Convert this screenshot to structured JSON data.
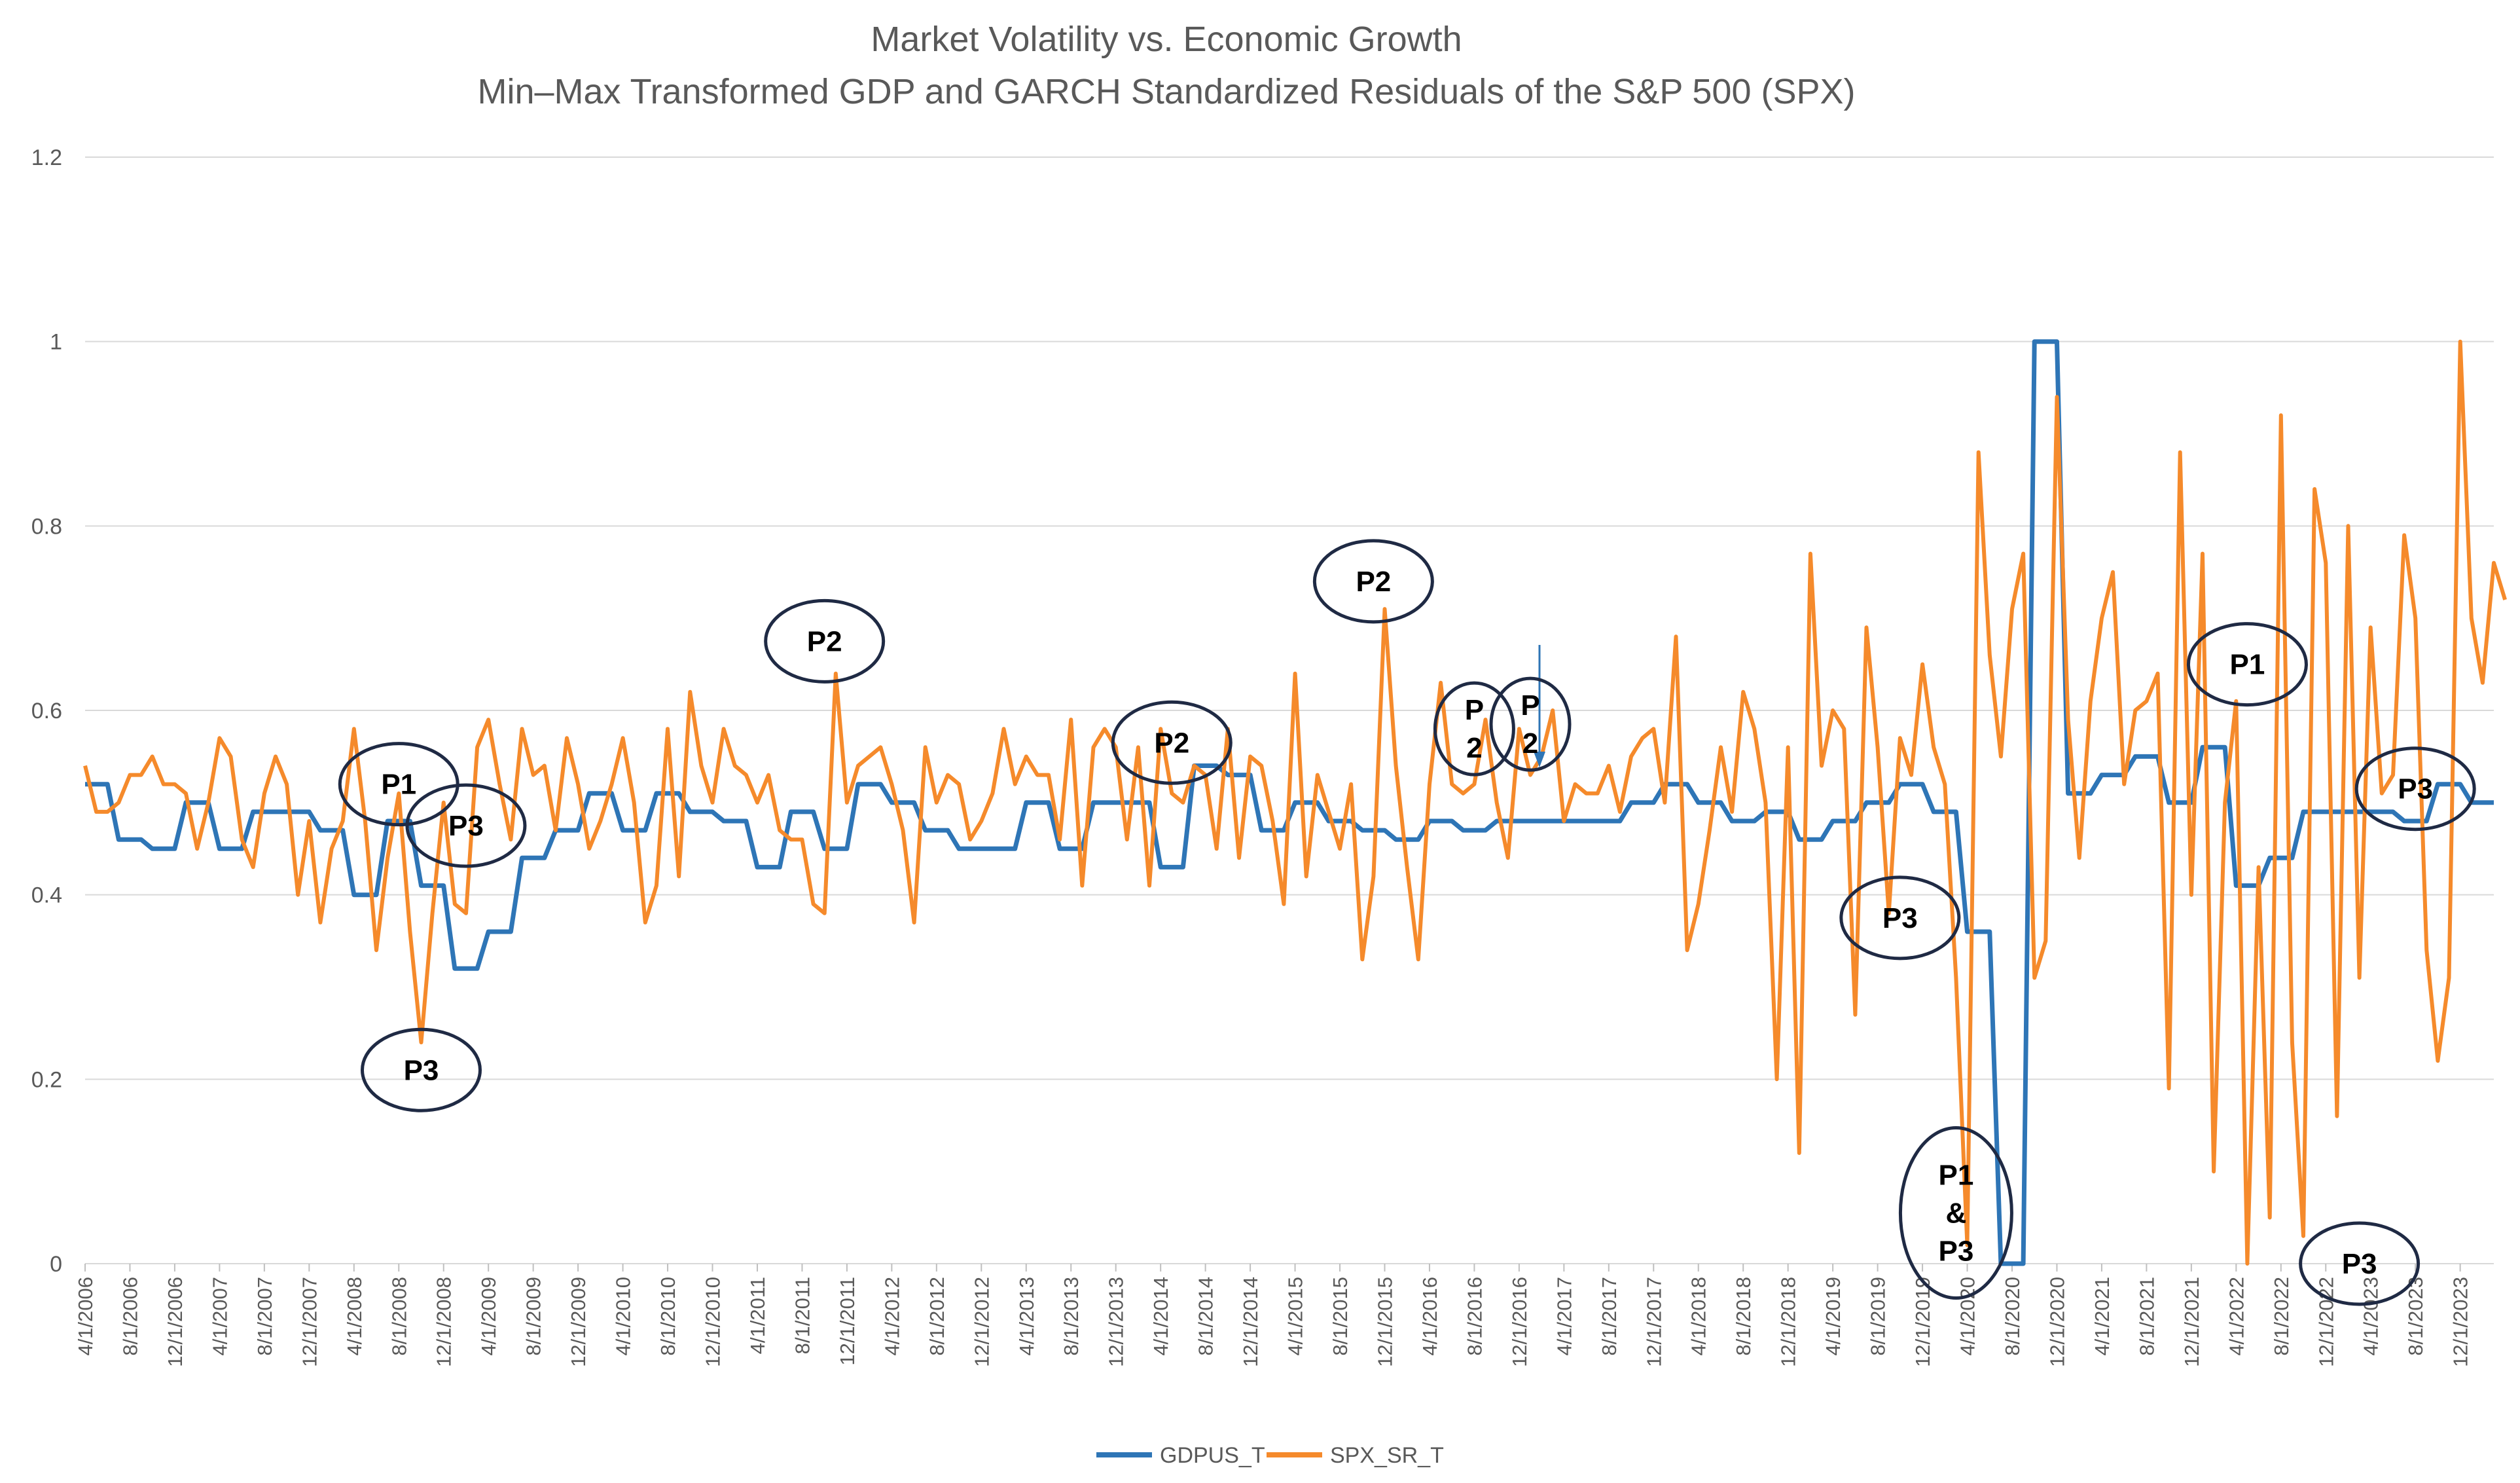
{
  "colors": {
    "gdp": "#2e75b6",
    "spx": "#f58a2b",
    "text": "#595959",
    "grid": "#d9d9d9",
    "annotation": "#1f2a44"
  },
  "chart_data": {
    "type": "line",
    "title": "Market Volatility vs. Economic Growth",
    "subtitle": "Min–Max Transformed GDP and GARCH Standardized Residuals of the S&P 500 (SPX)",
    "xlabel": "",
    "ylabel": "",
    "ylim": [
      0,
      1.2
    ],
    "yticks": [
      "0",
      "0.2",
      "0.4",
      "0.6",
      "0.8",
      "1",
      "1.2"
    ],
    "x_start": "4/1/2006",
    "n_months": 216,
    "x_tick_step_months": 4,
    "x_tick_labels": [
      "4/1/2006",
      "8/1/2006",
      "12/1/2006",
      "4/1/2007",
      "8/1/2007",
      "12/1/2007",
      "4/1/2008",
      "8/1/2008",
      "12/1/2008",
      "4/1/2009",
      "8/1/2009",
      "12/1/2009",
      "4/1/2010",
      "8/1/2010",
      "12/1/2010",
      "4/1/2011",
      "8/1/2011",
      "12/1/2011",
      "4/1/2012",
      "8/1/2012",
      "12/1/2012",
      "4/1/2013",
      "8/1/2013",
      "12/1/2013",
      "4/1/2014",
      "8/1/2014",
      "12/1/2014",
      "4/1/2015",
      "8/1/2015",
      "12/1/2015",
      "4/1/2016",
      "8/1/2016",
      "12/1/2016",
      "4/1/2017",
      "8/1/2017",
      "12/1/2017",
      "4/1/2018",
      "8/1/2018",
      "12/1/2018",
      "4/1/2019",
      "8/1/2019",
      "12/1/2019",
      "4/1/2020",
      "8/1/2020",
      "12/1/2020",
      "4/1/2021",
      "8/1/2021",
      "12/1/2021",
      "4/1/2022",
      "8/1/2022",
      "12/1/2022",
      "4/1/2023",
      "8/1/2023",
      "12/1/2023"
    ],
    "legend": [
      "GDPUS_T",
      "SPX_SR_T"
    ],
    "legend_position": "bottom",
    "series": [
      {
        "name": "GDPUS_T",
        "step": "quarterly",
        "quarterly_values": [
          0.52,
          0.46,
          0.45,
          0.5,
          0.45,
          0.49,
          0.49,
          0.47,
          0.4,
          0.48,
          0.41,
          0.32,
          0.36,
          0.44,
          0.47,
          0.51,
          0.47,
          0.51,
          0.49,
          0.48,
          0.43,
          0.49,
          0.45,
          0.52,
          0.5,
          0.47,
          0.45,
          0.45,
          0.5,
          0.45,
          0.5,
          0.5,
          0.43,
          0.54,
          0.53,
          0.47,
          0.5,
          0.48,
          0.47,
          0.46,
          0.48,
          0.47,
          0.48,
          0.48,
          0.48,
          0.48,
          0.5,
          0.52,
          0.5,
          0.48,
          0.49,
          0.46,
          0.48,
          0.5,
          0.52,
          0.49,
          0.36,
          0.0,
          1.0,
          0.51,
          0.53,
          0.55,
          0.5,
          0.56,
          0.41,
          0.44,
          0.49,
          0.49,
          0.49,
          0.48,
          0.52,
          0.5
        ]
      },
      {
        "name": "SPX_SR_T",
        "step": "monthly",
        "values": [
          0.54,
          0.49,
          0.49,
          0.5,
          0.53,
          0.53,
          0.55,
          0.52,
          0.52,
          0.51,
          0.45,
          0.5,
          0.57,
          0.55,
          0.46,
          0.43,
          0.51,
          0.55,
          0.52,
          0.4,
          0.48,
          0.37,
          0.45,
          0.48,
          0.58,
          0.48,
          0.34,
          0.44,
          0.51,
          0.36,
          0.24,
          0.38,
          0.5,
          0.39,
          0.38,
          0.56,
          0.59,
          0.52,
          0.46,
          0.58,
          0.53,
          0.54,
          0.47,
          0.57,
          0.52,
          0.45,
          0.48,
          0.52,
          0.57,
          0.5,
          0.37,
          0.41,
          0.58,
          0.42,
          0.62,
          0.54,
          0.5,
          0.58,
          0.54,
          0.53,
          0.5,
          0.53,
          0.47,
          0.46,
          0.46,
          0.39,
          0.38,
          0.64,
          0.5,
          0.54,
          0.55,
          0.56,
          0.52,
          0.47,
          0.37,
          0.56,
          0.5,
          0.53,
          0.52,
          0.46,
          0.48,
          0.51,
          0.58,
          0.52,
          0.55,
          0.53,
          0.53,
          0.46,
          0.59,
          0.41,
          0.56,
          0.58,
          0.56,
          0.46,
          0.56,
          0.41,
          0.58,
          0.51,
          0.5,
          0.54,
          0.53,
          0.45,
          0.58,
          0.44,
          0.55,
          0.54,
          0.48,
          0.39,
          0.64,
          0.42,
          0.53,
          0.49,
          0.45,
          0.52,
          0.33,
          0.42,
          0.71,
          0.54,
          0.43,
          0.33,
          0.52,
          0.63,
          0.52,
          0.51,
          0.52,
          0.59,
          0.5,
          0.44,
          0.58,
          0.53,
          0.55,
          0.6,
          0.48,
          0.52,
          0.51,
          0.51,
          0.54,
          0.49,
          0.55,
          0.57,
          0.58,
          0.5,
          0.68,
          0.34,
          0.39,
          0.47,
          0.56,
          0.49,
          0.62,
          0.58,
          0.5,
          0.2,
          0.56,
          0.12,
          0.77,
          0.54,
          0.6,
          0.58,
          0.27,
          0.69,
          0.56,
          0.38,
          0.57,
          0.53,
          0.65,
          0.56,
          0.52,
          0.31,
          0.02,
          0.88,
          0.66,
          0.55,
          0.71,
          0.77,
          0.31,
          0.35,
          0.94,
          0.59,
          0.44,
          0.61,
          0.7,
          0.75,
          0.52,
          0.6,
          0.61,
          0.64,
          0.19,
          0.88,
          0.4,
          0.77,
          0.1,
          0.5,
          0.61,
          0.0,
          0.43,
          0.05,
          0.92,
          0.24,
          0.03,
          0.84,
          0.76,
          0.16,
          0.8,
          0.31,
          0.69,
          0.51,
          0.53,
          0.79,
          0.7,
          0.34,
          0.22,
          0.31,
          1.0,
          0.7,
          0.63,
          0.76,
          0.72
        ]
      }
    ],
    "annotations": [
      {
        "lines": [
          "P1"
        ],
        "month_index": 28,
        "y": 0.52
      },
      {
        "lines": [
          "P3"
        ],
        "month_index": 34,
        "y": 0.475
      },
      {
        "lines": [
          "P3"
        ],
        "month_index": 30,
        "y": 0.21
      },
      {
        "lines": [
          "P2"
        ],
        "month_index": 66,
        "y": 0.675
      },
      {
        "lines": [
          "P2"
        ],
        "month_index": 97,
        "y": 0.565
      },
      {
        "lines": [
          "P2"
        ],
        "month_index": 115,
        "y": 0.74
      },
      {
        "lines": [
          "P",
          "2"
        ],
        "month_index": 124,
        "y": 0.58
      },
      {
        "lines": [
          "P",
          "2"
        ],
        "month_index": 129,
        "y": 0.585
      },
      {
        "lines": [
          "P3"
        ],
        "month_index": 162,
        "y": 0.375
      },
      {
        "lines": [
          "P1",
          "&",
          "P3"
        ],
        "month_index": 167,
        "y": 0.055
      },
      {
        "lines": [
          "P1"
        ],
        "month_index": 193,
        "y": 0.65
      },
      {
        "lines": [
          "P3"
        ],
        "month_index": 208,
        "y": 0.515
      },
      {
        "lines": [
          "P3"
        ],
        "month_index": 203,
        "y": 0.0
      }
    ]
  }
}
